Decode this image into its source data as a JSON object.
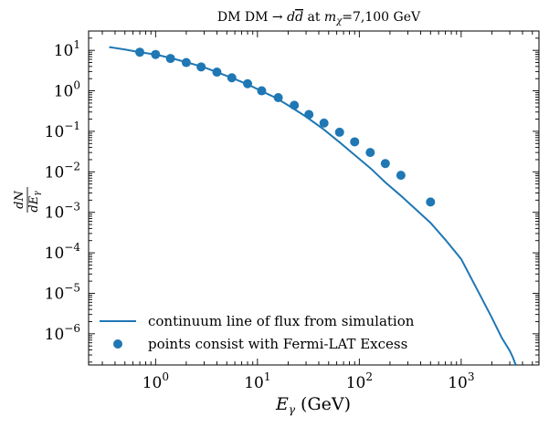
{
  "chart_data": {
    "type": "line",
    "title": "DM DM → dd̄ at mχ=7,100 GeV",
    "title_parts": {
      "prefix": "DM DM → ",
      "d1": "d",
      "d2": "d",
      "mid": " at ",
      "m": "m",
      "chi": "χ",
      "suffix": "=7,100 GeV"
    },
    "xlabel_parts": {
      "var": "E",
      "sub": "γ",
      "unit": " (GeV)"
    },
    "ylabel_parts": {
      "num": "dN",
      "den": "dE",
      "sub": "γ"
    },
    "xscale": "log",
    "yscale": "log",
    "xlim": [
      0.22,
      5800
    ],
    "ylim": [
      1.7e-07,
      30
    ],
    "x_ticks": [
      {
        "value": 1,
        "base": "10",
        "exp": "0"
      },
      {
        "value": 10,
        "base": "10",
        "exp": "1"
      },
      {
        "value": 100,
        "base": "10",
        "exp": "2"
      },
      {
        "value": 1000,
        "base": "10",
        "exp": "3"
      }
    ],
    "y_ticks": [
      {
        "value": 10,
        "base": "10",
        "exp": "1"
      },
      {
        "value": 1,
        "base": "10",
        "exp": "0"
      },
      {
        "value": 0.1,
        "base": "10",
        "exp": "−1"
      },
      {
        "value": 0.01,
        "base": "10",
        "exp": "−2"
      },
      {
        "value": 0.001,
        "base": "10",
        "exp": "−3"
      },
      {
        "value": 0.0001,
        "base": "10",
        "exp": "−4"
      },
      {
        "value": 1e-05,
        "base": "10",
        "exp": "−5"
      },
      {
        "value": 1e-06,
        "base": "10",
        "exp": "−6"
      }
    ],
    "color": "#1f77b4",
    "series": [
      {
        "name": "continuum line of flux from simulation",
        "kind": "line",
        "x": [
          0.35,
          0.5,
          0.7,
          1.0,
          1.4,
          2.0,
          3.0,
          4.0,
          6.0,
          8.0,
          11,
          15,
          20,
          30,
          45,
          65,
          90,
          130,
          180,
          250,
          350,
          500,
          700,
          1000,
          1500,
          2000,
          2500,
          3000,
          3200,
          3300,
          3400,
          3450,
          3460
        ],
        "y": [
          12,
          10.5,
          9.0,
          7.9,
          6.5,
          5.1,
          3.8,
          2.9,
          1.95,
          1.45,
          0.98,
          0.68,
          0.44,
          0.23,
          0.11,
          0.052,
          0.026,
          0.012,
          0.0055,
          0.0027,
          0.00125,
          0.00055,
          0.00021,
          7e-05,
          1e-05,
          2.5e-06,
          8e-07,
          3.8e-07,
          2.7e-07,
          2.2e-07,
          1.8e-07,
          1.7e-07,
          1.7e-07
        ]
      },
      {
        "name": "points consist with Fermi-LAT Excess",
        "kind": "scatter",
        "x": [
          0.7,
          1.0,
          1.4,
          2.0,
          2.8,
          4.0,
          5.6,
          8.0,
          11,
          16,
          23,
          32,
          45,
          64,
          90,
          128,
          180,
          256,
          500
        ],
        "y": [
          9.0,
          7.9,
          6.3,
          5.0,
          3.9,
          2.9,
          2.1,
          1.5,
          1.0,
          0.68,
          0.44,
          0.26,
          0.16,
          0.095,
          0.055,
          0.03,
          0.016,
          0.0082,
          0.0018
        ]
      }
    ],
    "legend": {
      "position": "lower-left",
      "line_label": "continuum line of flux from simulation",
      "scatter_label": "points consist with Fermi-LAT Excess"
    }
  }
}
